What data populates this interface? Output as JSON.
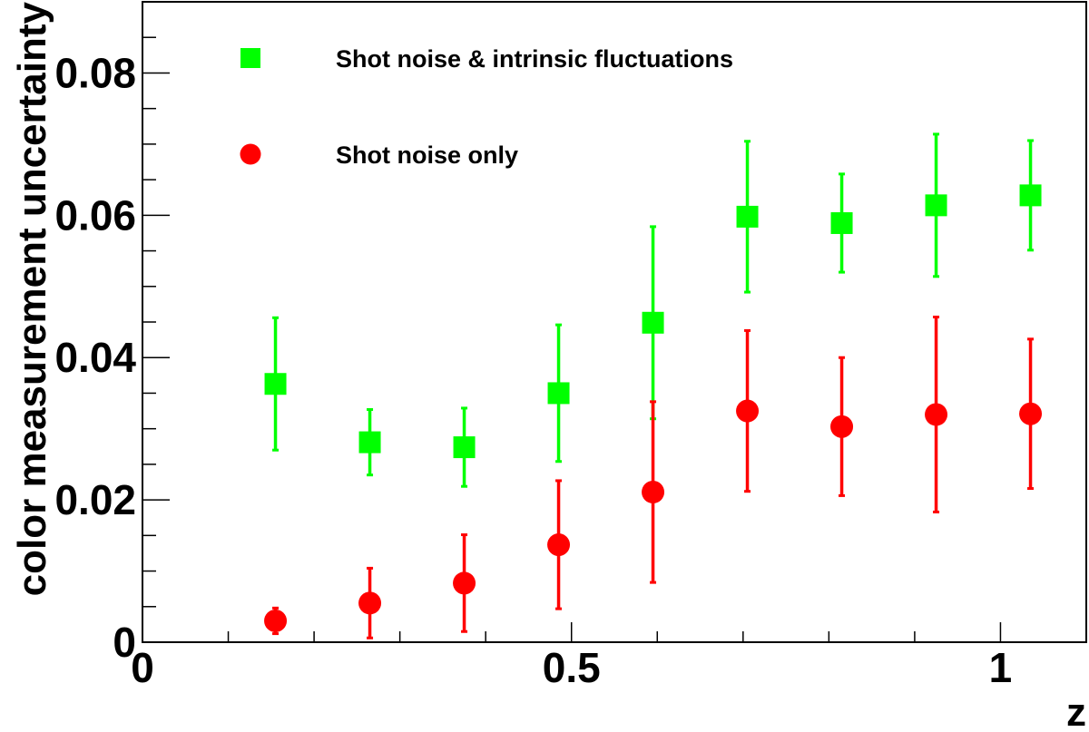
{
  "chart_data": {
    "type": "scatter",
    "xlabel": "z",
    "ylabel": "color measurement uncertainty",
    "xlim": [
      0,
      1.1
    ],
    "ylim": [
      0,
      0.09
    ],
    "xticks": [
      {
        "value": 0,
        "label": "0"
      },
      {
        "value": 0.5,
        "label": "0.5"
      },
      {
        "value": 1,
        "label": "1"
      }
    ],
    "yticks": [
      {
        "value": 0,
        "label": "0"
      },
      {
        "value": 0.02,
        "label": "0.02"
      },
      {
        "value": 0.04,
        "label": "0.04"
      },
      {
        "value": 0.06,
        "label": "0.06"
      },
      {
        "value": 0.08,
        "label": "0.08"
      }
    ],
    "x_minor_step": 0.1,
    "y_minor_step": 0.005,
    "grid": false,
    "legend_position": "top-left",
    "series": [
      {
        "name": "Shot noise & intrinsic fluctuations",
        "marker": "square",
        "color": "#00ff00",
        "points": [
          {
            "x": 0.155,
            "y": 0.0363,
            "err_low": 0.0093,
            "err_high": 0.0093
          },
          {
            "x": 0.265,
            "y": 0.0281,
            "err_low": 0.0046,
            "err_high": 0.0046
          },
          {
            "x": 0.375,
            "y": 0.0274,
            "err_low": 0.0055,
            "err_high": 0.0055
          },
          {
            "x": 0.485,
            "y": 0.035,
            "err_low": 0.0096,
            "err_high": 0.0096
          },
          {
            "x": 0.595,
            "y": 0.0449,
            "err_low": 0.0135,
            "err_high": 0.0135
          },
          {
            "x": 0.705,
            "y": 0.0598,
            "err_low": 0.0106,
            "err_high": 0.0106
          },
          {
            "x": 0.815,
            "y": 0.0589,
            "err_low": 0.0069,
            "err_high": 0.0069
          },
          {
            "x": 0.925,
            "y": 0.0614,
            "err_low": 0.01,
            "err_high": 0.01
          },
          {
            "x": 1.035,
            "y": 0.0628,
            "err_low": 0.0077,
            "err_high": 0.0077
          }
        ]
      },
      {
        "name": "Shot noise only",
        "marker": "circle",
        "color": "#ff0000",
        "points": [
          {
            "x": 0.155,
            "y": 0.003,
            "err_low": 0.0018,
            "err_high": 0.0018
          },
          {
            "x": 0.265,
            "y": 0.0055,
            "err_low": 0.0049,
            "err_high": 0.0049
          },
          {
            "x": 0.375,
            "y": 0.0083,
            "err_low": 0.0068,
            "err_high": 0.0068
          },
          {
            "x": 0.485,
            "y": 0.0137,
            "err_low": 0.009,
            "err_high": 0.009
          },
          {
            "x": 0.595,
            "y": 0.0211,
            "err_low": 0.0127,
            "err_high": 0.0127
          },
          {
            "x": 0.705,
            "y": 0.0325,
            "err_low": 0.0113,
            "err_high": 0.0113
          },
          {
            "x": 0.815,
            "y": 0.0303,
            "err_low": 0.0097,
            "err_high": 0.0097
          },
          {
            "x": 0.925,
            "y": 0.032,
            "err_low": 0.0137,
            "err_high": 0.0137
          },
          {
            "x": 1.035,
            "y": 0.0321,
            "err_low": 0.0105,
            "err_high": 0.0105
          }
        ]
      }
    ]
  }
}
